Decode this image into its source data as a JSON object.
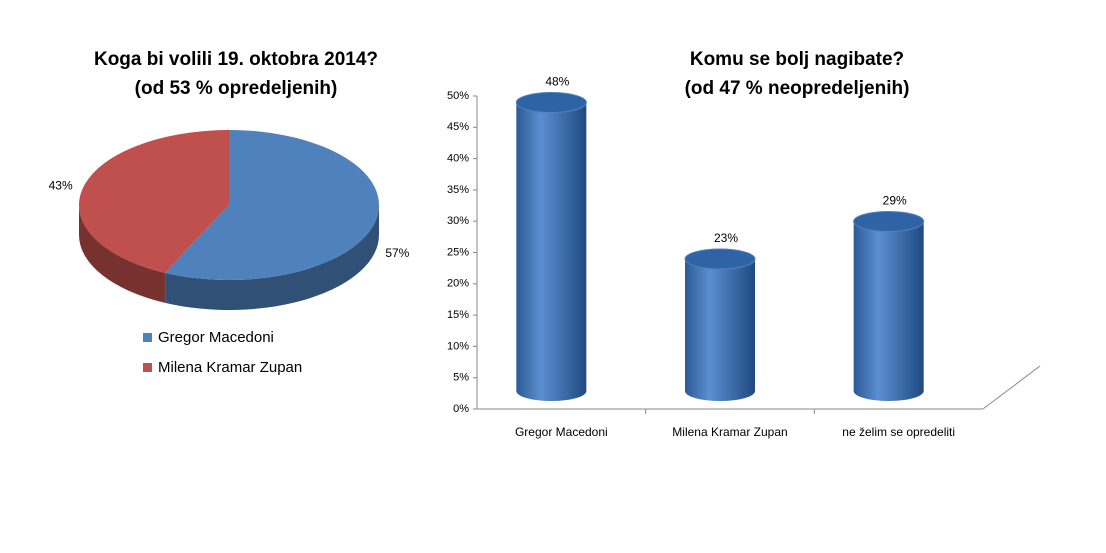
{
  "chart_data": [
    {
      "type": "pie",
      "title": "Koga bi volili 19. oktobra 2014?",
      "subtitle": "(od 53 % opredeljenih)",
      "categories": [
        "Gregor Macedoni",
        "Milena Kramar Zupan"
      ],
      "values": [
        57,
        43
      ],
      "value_labels": [
        "57%",
        "43%"
      ],
      "colors": [
        "#4f81bd",
        "#c0504d"
      ],
      "legend": "bottom"
    },
    {
      "type": "bar",
      "title": "Komu se bolj nagibate?",
      "subtitle": "(od 47 % neopredeljenih)",
      "categories": [
        "Gregor Macedoni",
        "Milena Kramar Zupan",
        "ne želim se opredeliti"
      ],
      "values": [
        48,
        23,
        29
      ],
      "value_labels": [
        "48%",
        "23%",
        "29%"
      ],
      "color": "#4f81bd",
      "ylim": [
        0,
        50
      ],
      "yticks": [
        {
          "value": 0,
          "label": "0%"
        },
        {
          "value": 5,
          "label": "5%"
        },
        {
          "value": 10,
          "label": "10%"
        },
        {
          "value": 15,
          "label": "15%"
        },
        {
          "value": 20,
          "label": "20%"
        },
        {
          "value": 25,
          "label": "25%"
        },
        {
          "value": 30,
          "label": "30%"
        },
        {
          "value": 35,
          "label": "35%"
        },
        {
          "value": 40,
          "label": "40%"
        },
        {
          "value": 45,
          "label": "45%"
        },
        {
          "value": 50,
          "label": "50%"
        }
      ]
    }
  ]
}
